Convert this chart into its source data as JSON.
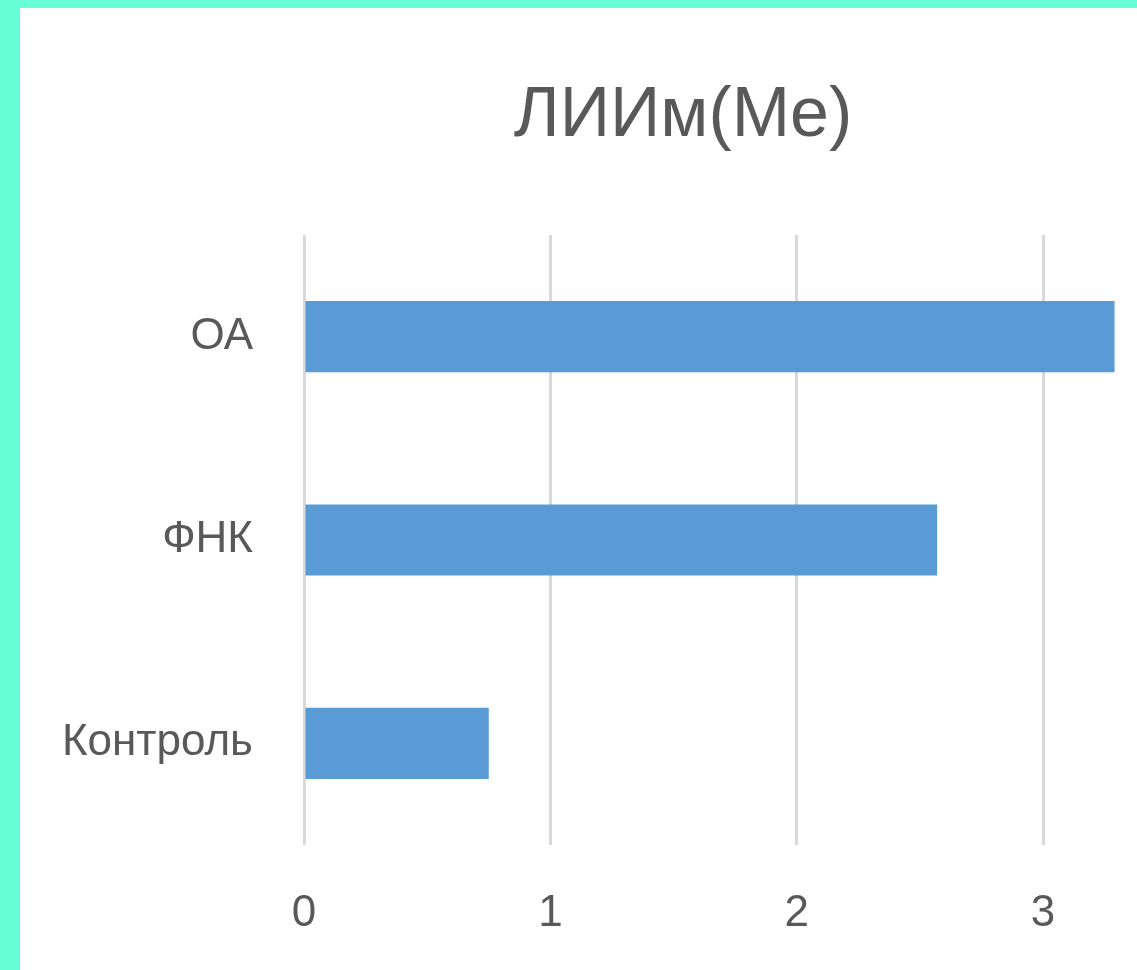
{
  "chart_data": {
    "type": "bar",
    "title": "ЛИИм(Me)",
    "orientation": "horizontal",
    "categories": [
      "ОА",
      "ФНК",
      "Контроль"
    ],
    "values": [
      3.29,
      2.57,
      0.75
    ],
    "color": "#5b9bd5",
    "xlim": [
      0,
      3.3
    ],
    "xticks": [
      0,
      1,
      2,
      3
    ],
    "grid": "x"
  }
}
